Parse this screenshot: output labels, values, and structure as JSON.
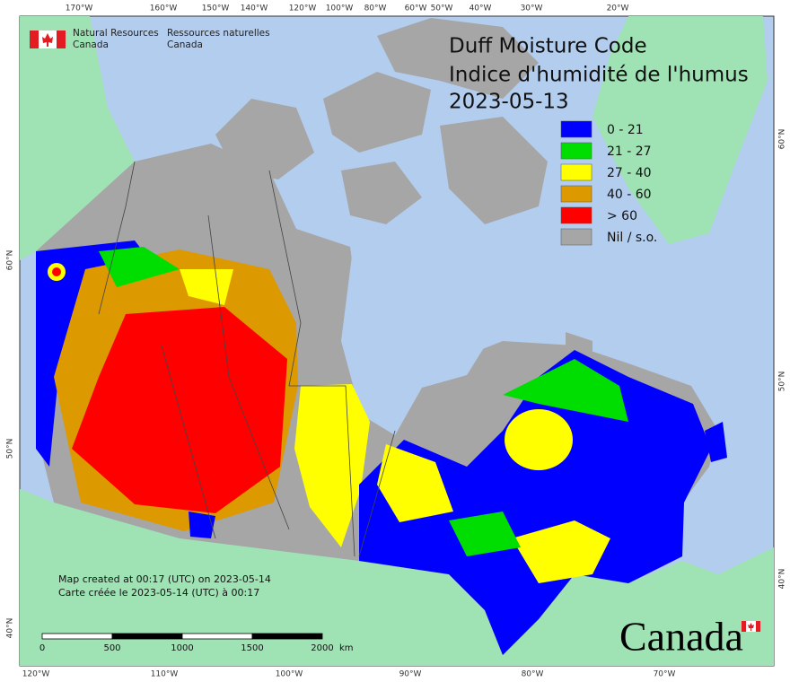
{
  "agency": {
    "en": [
      "Natural Resources",
      "Canada"
    ],
    "fr": [
      "Ressources naturelles",
      "Canada"
    ]
  },
  "title": [
    "Duff Moisture Code",
    "Indice d'humidité de l'humus",
    "2023-05-13"
  ],
  "legend": [
    {
      "label": "0 - 21",
      "color": "#0000ff"
    },
    {
      "label": "21 - 27",
      "color": "#00dd00"
    },
    {
      "label": "27 - 40",
      "color": "#ffff00"
    },
    {
      "label": "40 - 60",
      "color": "#dd9900"
    },
    {
      "label": "> 60",
      "color": "#ff0000"
    },
    {
      "label": "Nil / s.o.",
      "color": "#a6a6a6"
    }
  ],
  "graticule": {
    "top": [
      "170°W",
      "160°W",
      "150°W",
      "140°W",
      "120°W",
      "100°W",
      "80°W",
      "60°W",
      "50°W",
      "40°W",
      "30°W",
      "20°W"
    ],
    "bottom": [
      "120°W",
      "110°W",
      "100°W",
      "90°W",
      "80°W",
      "70°W"
    ],
    "left": [
      "60°N",
      "50°N",
      "40°N"
    ],
    "right": [
      "60°N",
      "50°N",
      "40°N"
    ]
  },
  "credits": [
    "Map created at 00:17 (UTC) on 2023-05-14",
    "Carte créée le 2023-05-14 (UTC) à 00:17"
  ],
  "scale_bar": {
    "labels": [
      "0",
      "500",
      "1000",
      "1500",
      "2000"
    ],
    "unit": "km"
  },
  "wordmark": "Canada"
}
